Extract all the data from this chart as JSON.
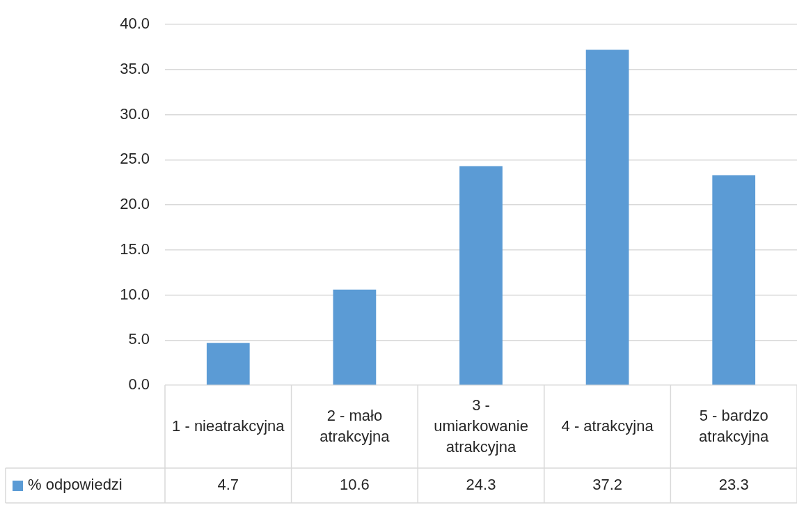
{
  "chart_data": {
    "type": "bar",
    "categories": [
      "1 - nieatrakcyjna",
      "2 - mało atrakcyjna",
      "3 - umiarkowanie atrakcyjna",
      "4 - atrakcyjna",
      "5 - bardzo atrakcyjna"
    ],
    "series": [
      {
        "name": "% odpowiedzi",
        "color": "#5b9bd5",
        "values": [
          4.7,
          10.6,
          24.3,
          37.2,
          23.3
        ]
      }
    ],
    "ylim": [
      0,
      40
    ],
    "yticks": [
      {
        "value": 0,
        "label": "0.0"
      },
      {
        "value": 5,
        "label": "5.0"
      },
      {
        "value": 10,
        "label": "10.0"
      },
      {
        "value": 15,
        "label": "15.0"
      },
      {
        "value": 20,
        "label": "20.0"
      },
      {
        "value": 25,
        "label": "25.0"
      },
      {
        "value": 30,
        "label": "30.0"
      },
      {
        "value": 35,
        "label": "35.0"
      },
      {
        "value": 40,
        "label": "40.0"
      }
    ],
    "grid": "y",
    "data_labels": true
  }
}
